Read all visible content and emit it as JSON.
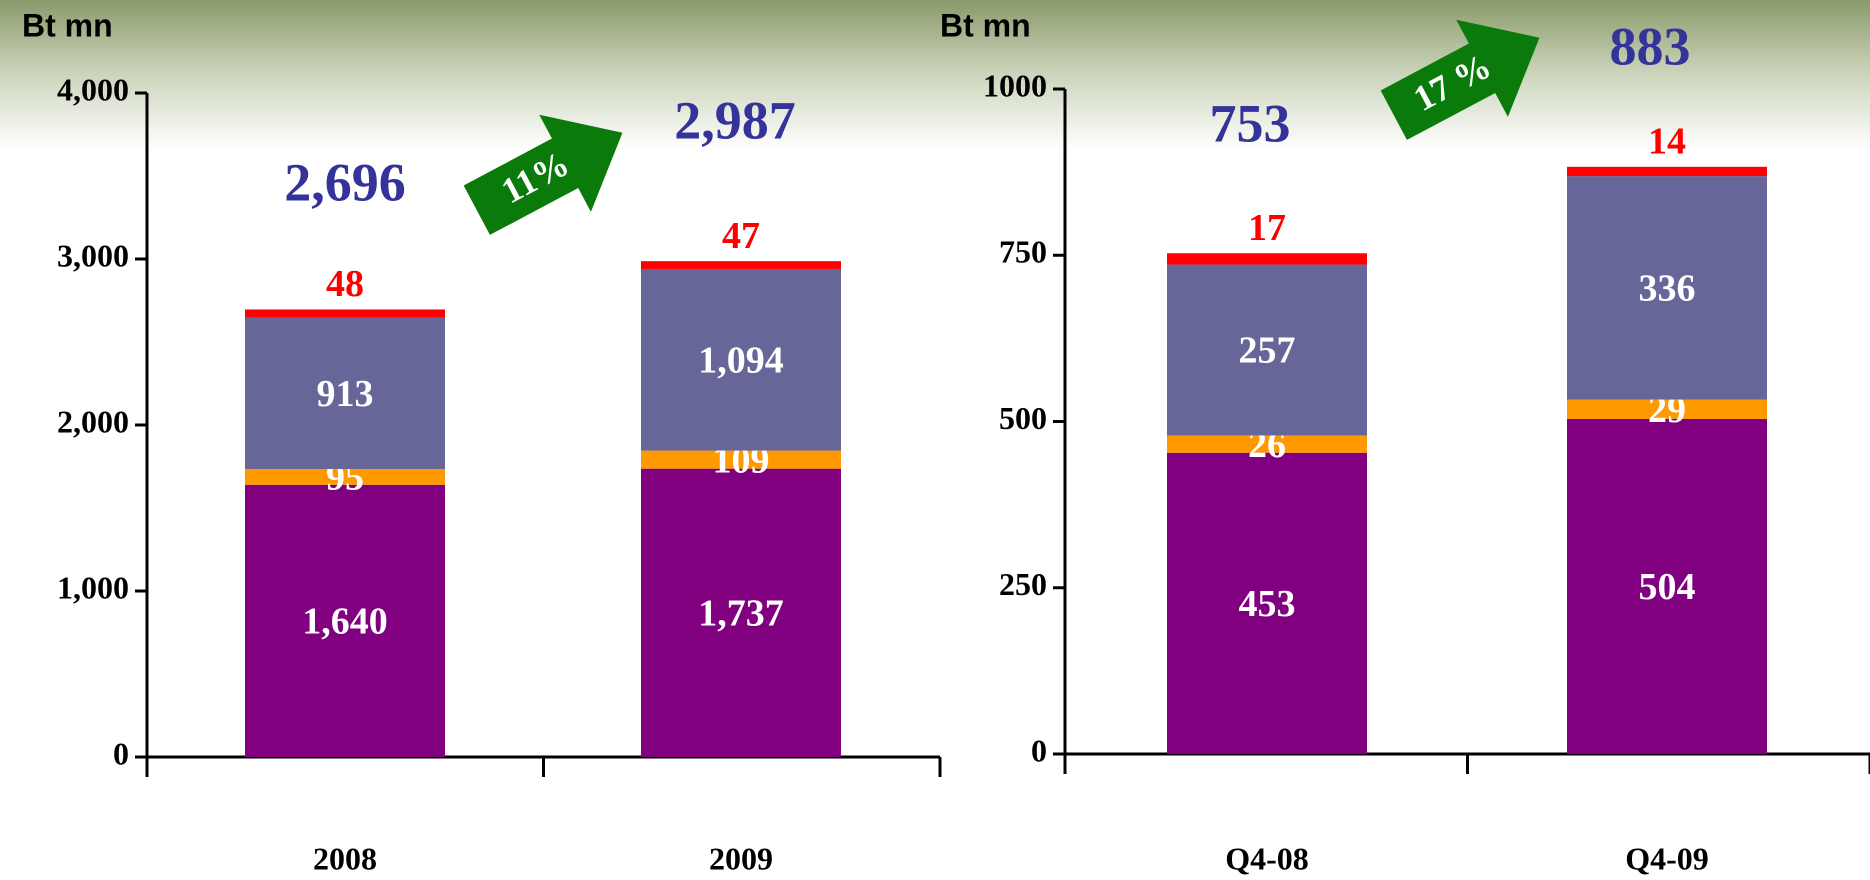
{
  "chart_data": [
    {
      "type": "stacked-bar",
      "y_label": "Bt mn",
      "categories": [
        "2008",
        "2009"
      ],
      "series": [
        {
          "color": "#800080",
          "values": [
            1640,
            1737
          ],
          "value_labels": [
            "1,640",
            "1,737"
          ]
        },
        {
          "color": "#ff9900",
          "values": [
            95,
            109
          ]
        },
        {
          "color": "#666699",
          "values": [
            913,
            1094
          ],
          "value_labels": [
            "913",
            "1,094"
          ]
        },
        {
          "color": "#ff0000",
          "values": [
            48,
            47
          ]
        }
      ],
      "totals": [
        2696,
        2987
      ],
      "total_labels": [
        "2,696",
        "2,987"
      ],
      "annotation": "11%",
      "ylim": [
        0,
        4000
      ],
      "yticks": [
        0,
        {
          "value": 1000,
          "label": "1,000"
        },
        {
          "value": 2000,
          "label": "2,000"
        },
        {
          "value": 3000,
          "label": "3,000"
        },
        {
          "value": 4000,
          "label": "4,000"
        }
      ]
    },
    {
      "type": "stacked-bar",
      "y_label": "Bt mn",
      "categories": [
        "Q4-08",
        "Q4-09"
      ],
      "series": [
        {
          "color": "#800080",
          "values": [
            453,
            504
          ]
        },
        {
          "color": "#ff9900",
          "values": [
            26,
            29
          ]
        },
        {
          "color": "#666699",
          "values": [
            257,
            336
          ]
        },
        {
          "color": "#ff0000",
          "values": [
            17,
            14
          ]
        }
      ],
      "totals": [
        753,
        883
      ],
      "annotation": "17 %",
      "ylim": [
        0,
        1000
      ],
      "yticks": [
        0,
        250,
        500,
        750,
        1000
      ]
    }
  ]
}
